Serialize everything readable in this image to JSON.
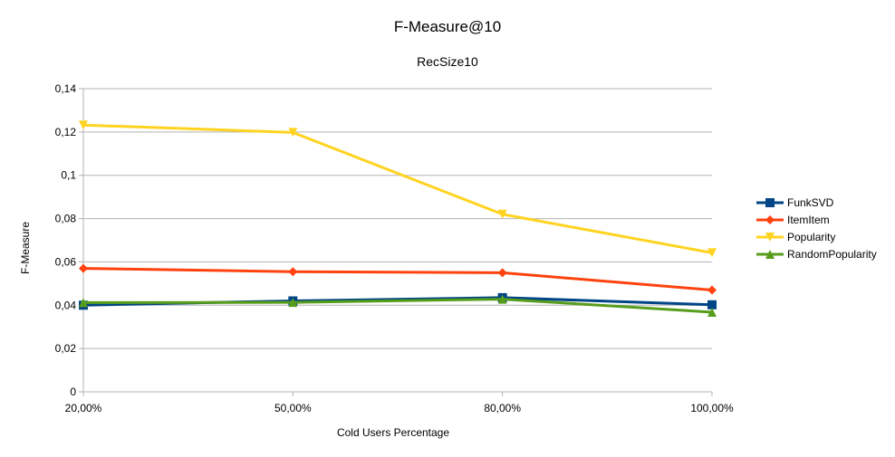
{
  "chart_data": {
    "type": "line",
    "title": "F-Measure@10",
    "subtitle": "RecSize10",
    "xlabel": "Cold Users Percentage",
    "ylabel": "F-Measure",
    "categories": [
      "20,00%",
      "50,00%",
      "80,00%",
      "100,00%"
    ],
    "ylim": [
      0,
      0.14
    ],
    "yticks": [
      0,
      0.02,
      0.04,
      0.06,
      0.08,
      0.1,
      0.12,
      0.14
    ],
    "ytick_labels": [
      "0",
      "0,02",
      "0,04",
      "0,06",
      "0,08",
      "0,1",
      "0,12",
      "0,14"
    ],
    "grid": true,
    "legend_position": "right",
    "series": [
      {
        "name": "FunkSVD",
        "color": "#004586",
        "marker": "square",
        "values": [
          0.04,
          0.042,
          0.0435,
          0.0402
        ]
      },
      {
        "name": "ItemItem",
        "color": "#ff420e",
        "marker": "diamond",
        "values": [
          0.057,
          0.0555,
          0.055,
          0.047
        ]
      },
      {
        "name": "Popularity",
        "color": "#ffd320",
        "marker": "triangle-down",
        "values": [
          0.1232,
          0.1198,
          0.082,
          0.0642
        ]
      },
      {
        "name": "RandomPopularity",
        "color": "#579d1c",
        "marker": "triangle-up",
        "values": [
          0.0412,
          0.0413,
          0.0428,
          0.0368
        ]
      }
    ]
  }
}
